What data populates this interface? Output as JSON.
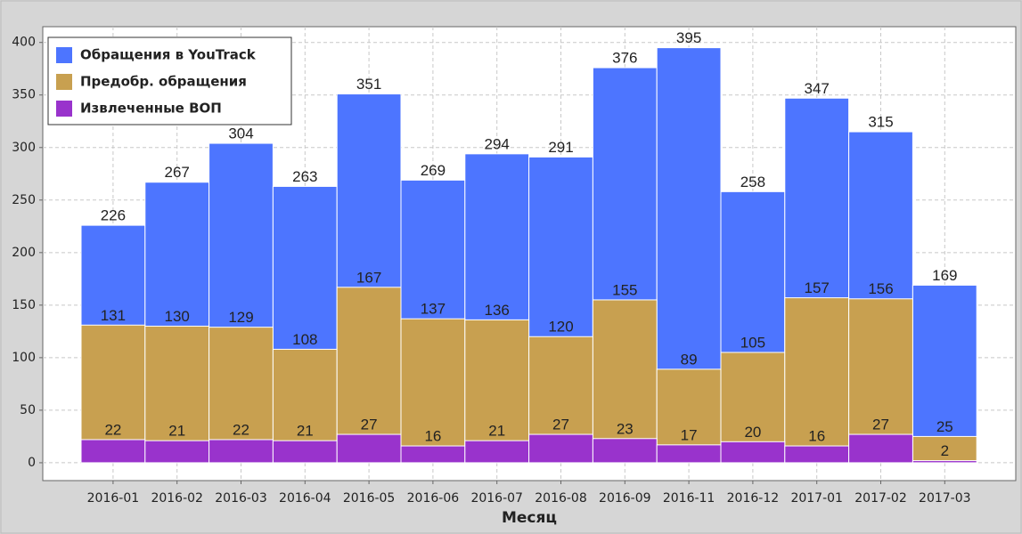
{
  "chart_data": {
    "type": "bar",
    "x_label": "Месяц",
    "categories": [
      "2016-01",
      "2016-02",
      "2016-03",
      "2016-04",
      "2016-05",
      "2016-06",
      "2016-07",
      "2016-08",
      "2016-09",
      "2016-11",
      "2016-12",
      "2017-01",
      "2017-02",
      "2017-03"
    ],
    "series": [
      {
        "name": "Обращения в YouTrack",
        "color": "#4d75ff",
        "values": [
          226,
          267,
          304,
          263,
          351,
          269,
          294,
          291,
          376,
          395,
          258,
          347,
          315,
          169
        ]
      },
      {
        "name": "Предобр. обращения",
        "color": "#c8a050",
        "values": [
          131,
          130,
          129,
          108,
          167,
          137,
          136,
          120,
          155,
          89,
          105,
          157,
          156,
          25
        ]
      },
      {
        "name": "Извлеченные ВОП",
        "color": "#9933cc",
        "values": [
          22,
          21,
          22,
          21,
          27,
          16,
          21,
          27,
          23,
          17,
          20,
          16,
          27,
          2
        ]
      }
    ],
    "ylim": [
      -17,
      415
    ],
    "yticks": [
      0,
      50,
      100,
      150,
      200,
      250,
      300,
      350,
      400
    ],
    "grid": true,
    "legend": "top-left"
  }
}
